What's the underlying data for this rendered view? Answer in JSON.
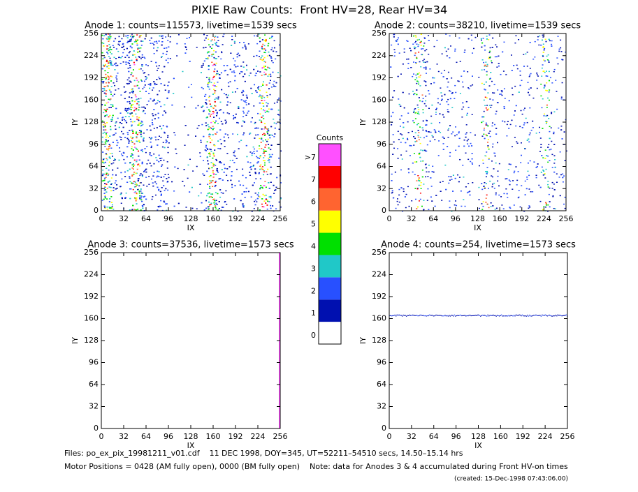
{
  "title": "PIXIE Raw Counts:  Front HV=28, Rear HV=34",
  "chart_data": [
    {
      "type": "heatmap",
      "title": "Anode 1: counts=115573, livetime=1539 secs",
      "xlabel": "IX",
      "ylabel": "IY",
      "xlim": [
        0,
        256
      ],
      "ylim": [
        0,
        256
      ],
      "xticks": [
        0,
        32,
        64,
        96,
        128,
        160,
        192,
        224,
        256
      ],
      "yticks": [
        0,
        32,
        64,
        96,
        128,
        160,
        192,
        224,
        256
      ]
    },
    {
      "type": "heatmap",
      "title": "Anode 2: counts=38210, livetime=1539 secs",
      "xlabel": "IX",
      "ylabel": "IY",
      "xlim": [
        0,
        256
      ],
      "ylim": [
        0,
        256
      ],
      "xticks": [
        0,
        32,
        64,
        96,
        128,
        160,
        192,
        224,
        256
      ],
      "yticks": [
        0,
        32,
        64,
        96,
        128,
        160,
        192,
        224,
        256
      ]
    },
    {
      "type": "heatmap",
      "title": "Anode 3: counts=37536, livetime=1573 secs",
      "xlabel": "IX",
      "ylabel": "IY",
      "xlim": [
        0,
        256
      ],
      "ylim": [
        0,
        256
      ],
      "xticks": [
        0,
        32,
        64,
        96,
        128,
        160,
        192,
        224,
        256
      ],
      "yticks": [
        0,
        32,
        64,
        96,
        128,
        160,
        192,
        224,
        256
      ]
    },
    {
      "type": "heatmap",
      "title": "Anode 4: counts=254, livetime=1573 secs",
      "xlabel": "IX",
      "ylabel": "IY",
      "xlim": [
        0,
        256
      ],
      "ylim": [
        0,
        256
      ],
      "xticks": [
        0,
        32,
        64,
        96,
        128,
        160,
        192,
        224,
        256
      ],
      "yticks": [
        0,
        32,
        64,
        96,
        128,
        160,
        192,
        224,
        256
      ]
    }
  ],
  "colorbar": {
    "title": "Counts",
    "levels": [
      {
        "label": "0",
        "color": "#ffffff"
      },
      {
        "label": "1",
        "color": "#0010b0"
      },
      {
        "label": "2",
        "color": "#2850ff"
      },
      {
        "label": "3",
        "color": "#20c8c8"
      },
      {
        "label": "4",
        "color": "#00e000"
      },
      {
        "label": "5",
        "color": "#ffff00"
      },
      {
        "label": "6",
        "color": "#ff6430"
      },
      {
        "label": "7",
        "color": "#ff0000"
      },
      {
        "label": ">7",
        "color": "#ff50ff"
      }
    ]
  },
  "footer": {
    "files": "Files: po_ex_pix_19981211_v01.cdf    11 DEC 1998, DOY=345, UT=52211–54510 secs, 14.50–15.14 hrs",
    "motor": "Motor Positions = 0428 (AM fully open), 0000 (BM fully open)    Note: data for Anodes 3 & 4 accumulated during Front HV-on times",
    "created": "(created: 15-Dec-1998 07:43:06.00)"
  }
}
